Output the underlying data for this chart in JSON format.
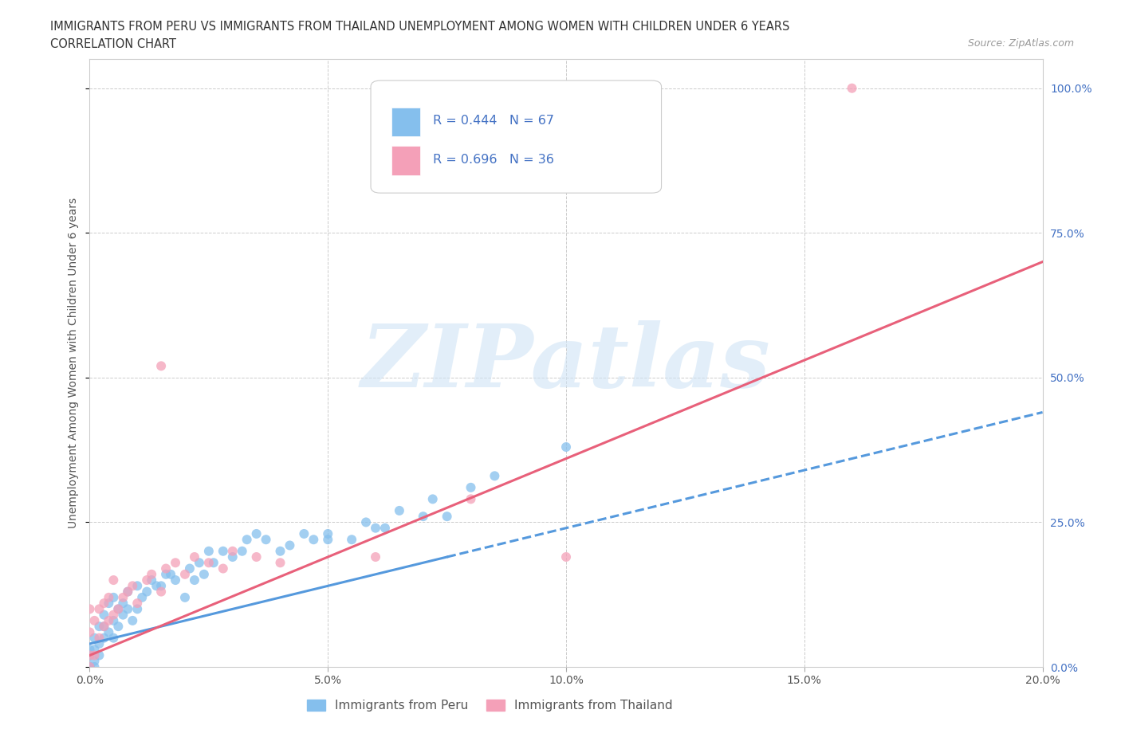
{
  "title_line1": "IMMIGRANTS FROM PERU VS IMMIGRANTS FROM THAILAND UNEMPLOYMENT AMONG WOMEN WITH CHILDREN UNDER 6 YEARS",
  "title_line2": "CORRELATION CHART",
  "source_text": "Source: ZipAtlas.com",
  "ylabel": "Unemployment Among Women with Children Under 6 years",
  "xlim": [
    0.0,
    0.2
  ],
  "ylim": [
    0.0,
    1.05
  ],
  "xticks": [
    0.0,
    0.05,
    0.1,
    0.15,
    0.2
  ],
  "xticklabels": [
    "0.0%",
    "5.0%",
    "10.0%",
    "15.0%",
    "20.0%"
  ],
  "yticks": [
    0.0,
    0.25,
    0.5,
    0.75,
    1.0
  ],
  "yticklabels": [
    "0.0%",
    "25.0%",
    "50.0%",
    "75.0%",
    "100.0%"
  ],
  "color_peru": "#85bfed",
  "color_thailand": "#f4a0b8",
  "color_peru_line": "#5599dd",
  "color_thailand_line": "#e8607a",
  "legend_r_peru": "R = 0.444",
  "legend_n_peru": "N = 67",
  "legend_r_thailand": "R = 0.696",
  "legend_n_thailand": "N = 36",
  "watermark": "ZIPatlas",
  "legend_label_peru": "Immigrants from Peru",
  "legend_label_thailand": "Immigrants from Thailand",
  "peru_x": [
    0.0,
    0.0,
    0.0,
    0.0,
    0.0,
    0.001,
    0.001,
    0.001,
    0.001,
    0.002,
    0.002,
    0.002,
    0.003,
    0.003,
    0.003,
    0.004,
    0.004,
    0.005,
    0.005,
    0.005,
    0.006,
    0.006,
    0.007,
    0.007,
    0.008,
    0.008,
    0.009,
    0.01,
    0.01,
    0.011,
    0.012,
    0.013,
    0.014,
    0.015,
    0.016,
    0.017,
    0.018,
    0.02,
    0.021,
    0.022,
    0.023,
    0.024,
    0.025,
    0.026,
    0.028,
    0.03,
    0.032,
    0.033,
    0.035,
    0.037,
    0.04,
    0.042,
    0.045,
    0.047,
    0.05,
    0.05,
    0.055,
    0.058,
    0.06,
    0.062,
    0.065,
    0.07,
    0.072,
    0.075,
    0.08,
    0.085,
    0.1
  ],
  "peru_y": [
    0.0,
    0.0,
    0.0,
    0.02,
    0.03,
    0.0,
    0.01,
    0.03,
    0.05,
    0.02,
    0.04,
    0.07,
    0.05,
    0.07,
    0.09,
    0.06,
    0.11,
    0.05,
    0.08,
    0.12,
    0.07,
    0.1,
    0.09,
    0.11,
    0.1,
    0.13,
    0.08,
    0.1,
    0.14,
    0.12,
    0.13,
    0.15,
    0.14,
    0.14,
    0.16,
    0.16,
    0.15,
    0.12,
    0.17,
    0.15,
    0.18,
    0.16,
    0.2,
    0.18,
    0.2,
    0.19,
    0.2,
    0.22,
    0.23,
    0.22,
    0.2,
    0.21,
    0.23,
    0.22,
    0.22,
    0.23,
    0.22,
    0.25,
    0.24,
    0.24,
    0.27,
    0.26,
    0.29,
    0.26,
    0.31,
    0.33,
    0.38
  ],
  "thailand_x": [
    0.0,
    0.0,
    0.0,
    0.0,
    0.001,
    0.001,
    0.002,
    0.002,
    0.003,
    0.003,
    0.004,
    0.004,
    0.005,
    0.005,
    0.006,
    0.007,
    0.008,
    0.009,
    0.01,
    0.012,
    0.013,
    0.015,
    0.016,
    0.018,
    0.02,
    0.022,
    0.025,
    0.028,
    0.03,
    0.035,
    0.015,
    0.04,
    0.06,
    0.08,
    0.16,
    0.1
  ],
  "thailand_y": [
    0.0,
    0.02,
    0.06,
    0.1,
    0.02,
    0.08,
    0.05,
    0.1,
    0.07,
    0.11,
    0.08,
    0.12,
    0.09,
    0.15,
    0.1,
    0.12,
    0.13,
    0.14,
    0.11,
    0.15,
    0.16,
    0.13,
    0.17,
    0.18,
    0.16,
    0.19,
    0.18,
    0.17,
    0.2,
    0.19,
    0.52,
    0.18,
    0.19,
    0.29,
    1.0,
    0.19
  ],
  "peru_line_x0": 0.0,
  "peru_line_y0": 0.04,
  "peru_line_x1": 0.2,
  "peru_line_y1": 0.44,
  "thailand_line_x0": 0.0,
  "thailand_line_y0": 0.02,
  "thailand_line_x1": 0.2,
  "thailand_line_y1": 0.7
}
